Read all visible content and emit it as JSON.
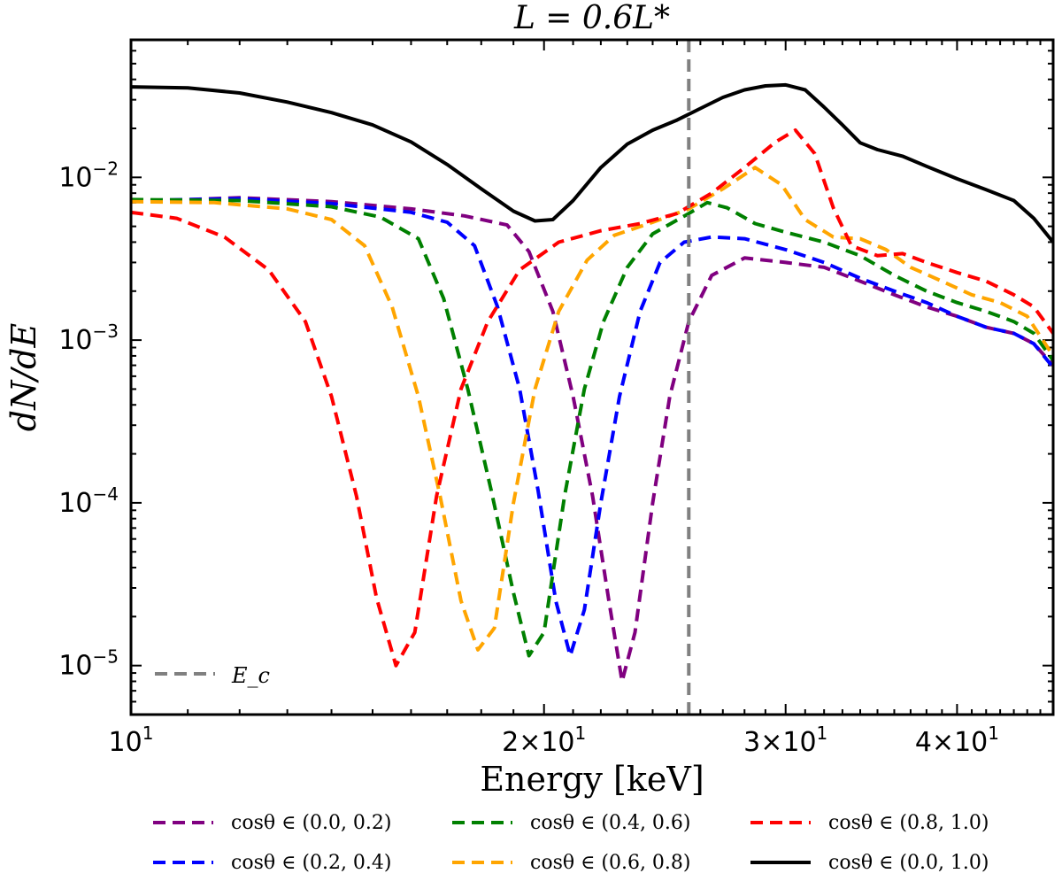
{
  "chart_data": {
    "type": "line",
    "title": "L = 0.6L*",
    "xlabel": "Energy [keV]",
    "ylabel": "dN/dE",
    "x_scale": "log",
    "y_scale": "log",
    "xlim": [
      10,
      47
    ],
    "ylim": [
      5e-06,
      0.07
    ],
    "x_ticks": [
      {
        "value": 10,
        "base": "10",
        "exp": "1"
      },
      {
        "value": 20,
        "base": "2×10",
        "exp": "1"
      },
      {
        "value": 30,
        "base": "3×10",
        "exp": "1"
      },
      {
        "value": 40,
        "base": "4×10",
        "exp": "1"
      }
    ],
    "y_ticks": [
      {
        "value": 0.01,
        "base": "10",
        "exp": "−2"
      },
      {
        "value": 0.001,
        "base": "10",
        "exp": "−3"
      },
      {
        "value": 0.0001,
        "base": "10",
        "exp": "−4"
      },
      {
        "value": 1e-05,
        "base": "10",
        "exp": "−5"
      }
    ],
    "vline": {
      "x": 25.5,
      "label": "E_c",
      "color": "#808080"
    },
    "legend_position": "bottom, outside, 3 columns",
    "series": [
      {
        "name": "cosθ ∈ (0.0, 0.2)",
        "color": "#800080",
        "dash": true,
        "points": [
          [
            10,
            0.0071
          ],
          [
            12,
            0.0075
          ],
          [
            14,
            0.0071
          ],
          [
            16,
            0.0064
          ],
          [
            17.5,
            0.0058
          ],
          [
            18.8,
            0.0051
          ],
          [
            19.5,
            0.0035
          ],
          [
            20.3,
            0.0015
          ],
          [
            21,
            0.00045
          ],
          [
            21.7,
            0.00011
          ],
          [
            22.3,
            2.5e-05
          ],
          [
            22.8,
            8e-06
          ],
          [
            23.3,
            1.6e-05
          ],
          [
            24,
            0.0001
          ],
          [
            24.7,
            0.00045
          ],
          [
            25.5,
            0.0013
          ],
          [
            26.5,
            0.0025
          ],
          [
            28,
            0.0032
          ],
          [
            30,
            0.003
          ],
          [
            32,
            0.0028
          ],
          [
            34,
            0.0023
          ],
          [
            36,
            0.0019
          ],
          [
            38,
            0.0016
          ],
          [
            40,
            0.0014
          ],
          [
            42,
            0.0012
          ],
          [
            44,
            0.0011
          ],
          [
            45.5,
            0.00095
          ],
          [
            47,
            0.0007
          ]
        ]
      },
      {
        "name": "cosθ ∈ (0.2, 0.4)",
        "color": "#0000ff",
        "dash": true,
        "points": [
          [
            10,
            0.0072
          ],
          [
            12,
            0.0074
          ],
          [
            14,
            0.0069
          ],
          [
            16,
            0.0061
          ],
          [
            17,
            0.0053
          ],
          [
            17.8,
            0.0038
          ],
          [
            18.5,
            0.0016
          ],
          [
            19.2,
            0.0005
          ],
          [
            19.8,
            0.00012
          ],
          [
            20.4,
            2.5e-05
          ],
          [
            20.9,
            1.15e-05
          ],
          [
            21.4,
            2.2e-05
          ],
          [
            22,
            0.0001
          ],
          [
            22.7,
            0.00045
          ],
          [
            23.5,
            0.0015
          ],
          [
            24.3,
            0.003
          ],
          [
            25.3,
            0.004
          ],
          [
            26.5,
            0.0043
          ],
          [
            28,
            0.0042
          ],
          [
            30,
            0.0036
          ],
          [
            32,
            0.003
          ],
          [
            34,
            0.0024
          ],
          [
            36,
            0.002
          ],
          [
            38,
            0.0017
          ],
          [
            40,
            0.0014
          ],
          [
            42,
            0.0012
          ],
          [
            44,
            0.0011
          ],
          [
            45.5,
            0.00095
          ],
          [
            47,
            0.00068
          ]
        ]
      },
      {
        "name": "cosθ ∈ (0.4, 0.6)",
        "color": "#008000",
        "dash": true,
        "points": [
          [
            10,
            0.0073
          ],
          [
            12,
            0.0072
          ],
          [
            14,
            0.0066
          ],
          [
            15.2,
            0.0057
          ],
          [
            16.2,
            0.0042
          ],
          [
            16.9,
            0.0018
          ],
          [
            17.6,
            0.0005
          ],
          [
            18.3,
            0.00012
          ],
          [
            19,
            2.8e-05
          ],
          [
            19.5,
            1.15e-05
          ],
          [
            20,
            1.6e-05
          ],
          [
            20.7,
            0.00011
          ],
          [
            21.4,
            0.0005
          ],
          [
            22.1,
            0.0013
          ],
          [
            23,
            0.0028
          ],
          [
            24,
            0.0045
          ],
          [
            25.5,
            0.006
          ],
          [
            26.3,
            0.007
          ],
          [
            27.2,
            0.0065
          ],
          [
            28.5,
            0.0052
          ],
          [
            30,
            0.0046
          ],
          [
            32,
            0.004
          ],
          [
            34,
            0.0033
          ],
          [
            36,
            0.0025
          ],
          [
            38,
            0.002
          ],
          [
            40,
            0.0017
          ],
          [
            42,
            0.0015
          ],
          [
            44,
            0.0013
          ],
          [
            45.5,
            0.0011
          ],
          [
            47,
            0.00075
          ]
        ]
      },
      {
        "name": "cosθ ∈ (0.6, 0.8)",
        "color": "#ffa500",
        "dash": true,
        "points": [
          [
            10,
            0.0071
          ],
          [
            11.5,
            0.007
          ],
          [
            13,
            0.0064
          ],
          [
            14,
            0.0055
          ],
          [
            14.8,
            0.0038
          ],
          [
            15.5,
            0.0016
          ],
          [
            16.2,
            0.00045
          ],
          [
            16.8,
            0.00011
          ],
          [
            17.4,
            2.5e-05
          ],
          [
            17.9,
            1.25e-05
          ],
          [
            18.4,
            1.7e-05
          ],
          [
            19,
            0.0001
          ],
          [
            19.7,
            0.0005
          ],
          [
            20.5,
            0.0015
          ],
          [
            21.5,
            0.0031
          ],
          [
            22.5,
            0.0044
          ],
          [
            24,
            0.0053
          ],
          [
            25.5,
            0.0064
          ],
          [
            27,
            0.0085
          ],
          [
            28.5,
            0.0115
          ],
          [
            29.8,
            0.009
          ],
          [
            31,
            0.0055
          ],
          [
            32.5,
            0.0043
          ],
          [
            34,
            0.0042
          ],
          [
            35.5,
            0.0036
          ],
          [
            37,
            0.0028
          ],
          [
            39,
            0.0023
          ],
          [
            41,
            0.0019
          ],
          [
            43,
            0.0017
          ],
          [
            45,
            0.0014
          ],
          [
            47,
            0.0008
          ]
        ]
      },
      {
        "name": "cosθ ∈ (0.8, 1.0)",
        "color": "#ff0000",
        "dash": true,
        "points": [
          [
            10,
            0.0061
          ],
          [
            10.8,
            0.0056
          ],
          [
            11.7,
            0.0043
          ],
          [
            12.6,
            0.0027
          ],
          [
            13.4,
            0.0013
          ],
          [
            14,
            0.00045
          ],
          [
            14.6,
            0.00011
          ],
          [
            15.1,
            2.6e-05
          ],
          [
            15.6,
            1e-05
          ],
          [
            16.1,
            1.6e-05
          ],
          [
            16.7,
            0.00011
          ],
          [
            17.4,
            0.0005
          ],
          [
            18.2,
            0.0013
          ],
          [
            19.2,
            0.0027
          ],
          [
            20.5,
            0.004
          ],
          [
            22,
            0.0047
          ],
          [
            23.5,
            0.0052
          ],
          [
            25,
            0.006
          ],
          [
            26.5,
            0.008
          ],
          [
            28,
            0.0115
          ],
          [
            29.5,
            0.0165
          ],
          [
            30.5,
            0.0195
          ],
          [
            31.5,
            0.014
          ],
          [
            32.5,
            0.0065
          ],
          [
            33.5,
            0.0038
          ],
          [
            35,
            0.0033
          ],
          [
            36.5,
            0.0034
          ],
          [
            38,
            0.003
          ],
          [
            40,
            0.0026
          ],
          [
            42,
            0.0023
          ],
          [
            44,
            0.0019
          ],
          [
            45.5,
            0.0016
          ],
          [
            47,
            0.0011
          ]
        ]
      },
      {
        "name": "cosθ ∈ (0.0, 1.0)",
        "color": "#000000",
        "dash": false,
        "points": [
          [
            10,
            0.036
          ],
          [
            11,
            0.0355
          ],
          [
            12,
            0.033
          ],
          [
            13,
            0.029
          ],
          [
            14,
            0.025
          ],
          [
            15,
            0.021
          ],
          [
            16,
            0.0165
          ],
          [
            17,
            0.012
          ],
          [
            18,
            0.0085
          ],
          [
            19,
            0.0062
          ],
          [
            19.7,
            0.0054
          ],
          [
            20.3,
            0.0055
          ],
          [
            21,
            0.0072
          ],
          [
            22,
            0.0115
          ],
          [
            23,
            0.016
          ],
          [
            24,
            0.0195
          ],
          [
            25,
            0.0225
          ],
          [
            26,
            0.0265
          ],
          [
            27,
            0.031
          ],
          [
            28,
            0.0345
          ],
          [
            29,
            0.0365
          ],
          [
            30,
            0.037
          ],
          [
            31,
            0.0345
          ],
          [
            32,
            0.027
          ],
          [
            33,
            0.021
          ],
          [
            34,
            0.0163
          ],
          [
            35,
            0.0148
          ],
          [
            36.5,
            0.0135
          ],
          [
            38,
            0.0117
          ],
          [
            40,
            0.0098
          ],
          [
            42,
            0.0084
          ],
          [
            44,
            0.0072
          ],
          [
            45.5,
            0.0056
          ],
          [
            47,
            0.004
          ]
        ]
      }
    ]
  }
}
